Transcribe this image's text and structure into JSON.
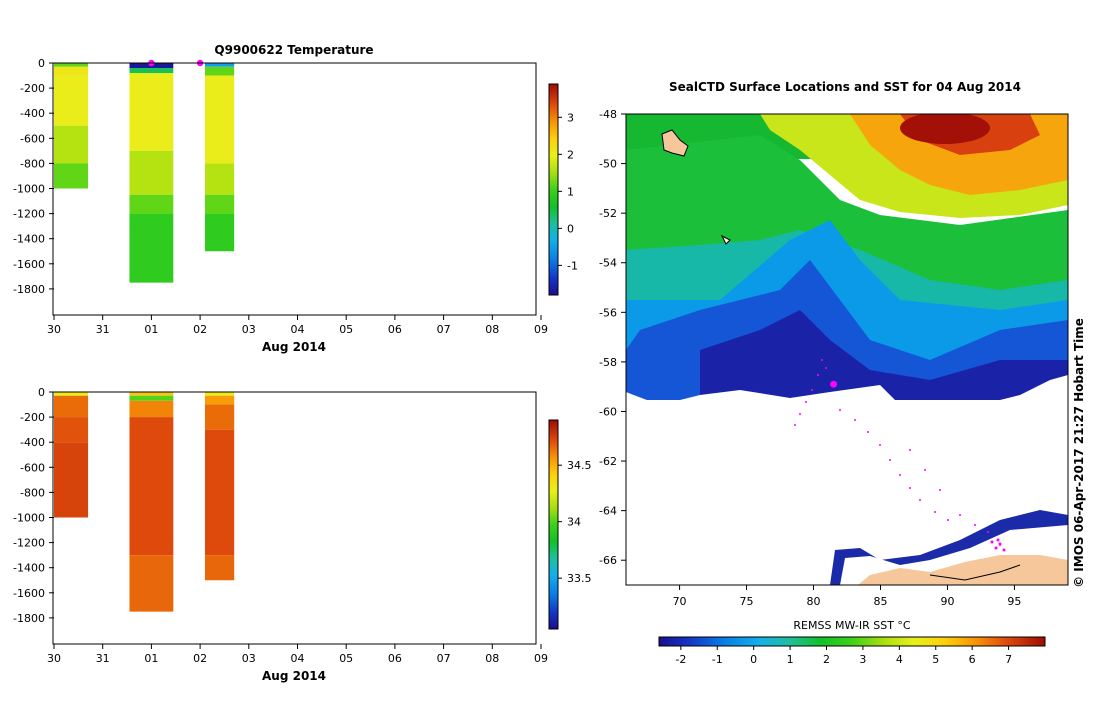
{
  "chart_data": [
    {
      "id": "temperature",
      "type": "heatmap",
      "title": "Q9900622  Temperature",
      "xlabel": "Aug 2014",
      "ylabel": "",
      "x_ticks": [
        "30",
        "31",
        "01",
        "02",
        "03",
        "04",
        "05",
        "06",
        "07",
        "08",
        "09"
      ],
      "y_ticks": [
        "0",
        "-200",
        "-400",
        "-600",
        "-800",
        "-1000",
        "-1200",
        "-1400",
        "-1600",
        "-1800"
      ],
      "ylim": [
        -2000,
        0
      ],
      "colorbar_ticks": [
        "3",
        "2",
        "1",
        "0",
        "-1"
      ],
      "colorbar_range": [
        -1.8,
        3.9
      ],
      "profiles": [
        {
          "x_start": 30.0,
          "x_end": 30.7,
          "depth_max": -1000,
          "layers": [
            {
              "top": 0,
              "bottom": -30,
              "value": 1.2
            },
            {
              "top": -30,
              "bottom": -100,
              "value": 2.1
            },
            {
              "top": -100,
              "bottom": -500,
              "value": 2.0
            },
            {
              "top": -500,
              "bottom": -800,
              "value": 1.6
            },
            {
              "top": -800,
              "bottom": -1000,
              "value": 1.2
            }
          ]
        },
        {
          "x_start": 31.55,
          "x_end": 32.45,
          "depth_max": -1750,
          "layers": [
            {
              "top": 0,
              "bottom": -40,
              "value": -1.7
            },
            {
              "top": -40,
              "bottom": -80,
              "value": 0.4
            },
            {
              "top": -80,
              "bottom": -700,
              "value": 2.0
            },
            {
              "top": -700,
              "bottom": -1050,
              "value": 1.6
            },
            {
              "top": -1050,
              "bottom": -1200,
              "value": 1.2
            },
            {
              "top": -1200,
              "bottom": -1750,
              "value": 0.9
            }
          ]
        },
        {
          "x_start": 33.1,
          "x_end": 33.7,
          "depth_max": -1500,
          "layers": [
            {
              "top": 0,
              "bottom": -30,
              "value": -0.5
            },
            {
              "top": -30,
              "bottom": -100,
              "value": 1.2
            },
            {
              "top": -100,
              "bottom": -800,
              "value": 2.0
            },
            {
              "top": -800,
              "bottom": -1050,
              "value": 1.6
            },
            {
              "top": -1050,
              "bottom": -1200,
              "value": 1.2
            },
            {
              "top": -1200,
              "bottom": -1500,
              "value": 0.9
            }
          ]
        }
      ],
      "markers": [
        {
          "x": 32.0
        },
        {
          "x": 33.0
        }
      ]
    },
    {
      "id": "salinity",
      "type": "heatmap",
      "title": "",
      "xlabel": "Aug 2014",
      "ylabel": "",
      "x_ticks": [
        "30",
        "31",
        "01",
        "02",
        "03",
        "04",
        "05",
        "06",
        "07",
        "08",
        "09"
      ],
      "y_ticks": [
        "0",
        "-200",
        "-400",
        "-600",
        "-800",
        "-1000",
        "-1200",
        "-1400",
        "-1600",
        "-1800"
      ],
      "ylim": [
        -2000,
        0
      ],
      "colorbar_ticks": [
        "34.5",
        "34",
        "33.5"
      ],
      "colorbar_range": [
        33.05,
        34.9
      ],
      "profiles": [
        {
          "x_start": 30.0,
          "x_end": 30.7,
          "depth_max": -1000,
          "layers": [
            {
              "top": 0,
              "bottom": -30,
              "value": 34.3
            },
            {
              "top": -30,
              "bottom": -200,
              "value": 34.65
            },
            {
              "top": -200,
              "bottom": -400,
              "value": 34.7
            },
            {
              "top": -400,
              "bottom": -1000,
              "value": 34.74
            }
          ]
        },
        {
          "x_start": 31.55,
          "x_end": 32.45,
          "depth_max": -1750,
          "layers": [
            {
              "top": 0,
              "bottom": -30,
              "value": 34.45
            },
            {
              "top": -30,
              "bottom": -70,
              "value": 34.0
            },
            {
              "top": -70,
              "bottom": -200,
              "value": 34.6
            },
            {
              "top": -200,
              "bottom": -1300,
              "value": 34.72
            },
            {
              "top": -1300,
              "bottom": -1750,
              "value": 34.66
            }
          ]
        },
        {
          "x_start": 33.1,
          "x_end": 33.7,
          "depth_max": -1500,
          "layers": [
            {
              "top": 0,
              "bottom": -30,
              "value": 34.3
            },
            {
              "top": -30,
              "bottom": -100,
              "value": 34.55
            },
            {
              "top": -100,
              "bottom": -300,
              "value": 34.65
            },
            {
              "top": -300,
              "bottom": -1300,
              "value": 34.72
            },
            {
              "top": -1300,
              "bottom": -1500,
              "value": 34.66
            }
          ]
        }
      ]
    },
    {
      "id": "sst-map",
      "type": "heatmap",
      "title": "SealCTD Surface Locations and SST for 04 Aug 2014",
      "xlabel": "",
      "ylabel": "",
      "xlim": [
        66,
        99
      ],
      "ylim": [
        -67,
        -48
      ],
      "x_ticks": [
        "70",
        "75",
        "80",
        "85",
        "90",
        "95"
      ],
      "y_ticks": [
        "-48",
        "-50",
        "-52",
        "-54",
        "-56",
        "-58",
        "-60",
        "-62",
        "-64",
        "-66"
      ],
      "colorbar_label": "REMSS MW-IR SST °C",
      "colorbar_ticks": [
        "-2",
        "-1",
        "0",
        "1",
        "2",
        "3",
        "4",
        "5",
        "6",
        "7"
      ],
      "colorbar_range": [
        -2.6,
        8.0
      ],
      "surface_location": {
        "lon": 81.5,
        "lat": -58.9
      }
    }
  ],
  "side_note": "© IMOS 06-Apr-2017 21:27 Hobart Time",
  "colors": {
    "marker": "#ff00ff",
    "land": "#f5c79a",
    "ice_edge": "#101070"
  }
}
